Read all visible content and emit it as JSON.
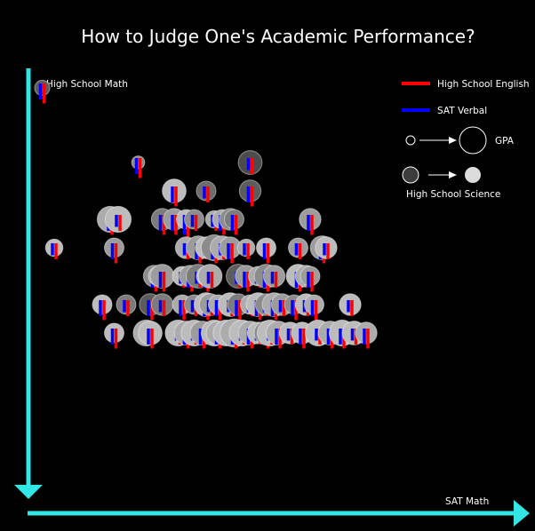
{
  "chart_data": {
    "type": "scatter",
    "title": "How to Judge One's Academic Performance?",
    "xlabel": "SAT Math",
    "ylabel": "High School Math",
    "xlim": [
      0,
      100
    ],
    "ylim": [
      0,
      100
    ],
    "legend": {
      "placement": "top-right",
      "english_label": "High School English",
      "verbal_label": "SAT Verbal",
      "gpa_label": "GPA",
      "science_label": "High School Science"
    },
    "colors": {
      "background": "#000000",
      "axis": "#33e6e6",
      "english": "#ff0000",
      "verbal": "#0000ff",
      "science_low": "#3c3c3c",
      "science_high": "#dcdcdc",
      "outline": "#ffffff"
    },
    "fields": [
      "sat_math",
      "hs_math",
      "gpa",
      "hs_science",
      "hs_english",
      "sat_verbal"
    ],
    "points": [
      [
        -1,
        100,
        30,
        20,
        50,
        40
      ],
      [
        23,
        79,
        20,
        50,
        50,
        40
      ],
      [
        51,
        79,
        70,
        10,
        40,
        30
      ],
      [
        32,
        71,
        70,
        80,
        50,
        40
      ],
      [
        40,
        71,
        50,
        30,
        40,
        30
      ],
      [
        51,
        71,
        60,
        20,
        50,
        40
      ],
      [
        16,
        63,
        80,
        70,
        50,
        40
      ],
      [
        18,
        63,
        80,
        80,
        40,
        30
      ],
      [
        29,
        63,
        60,
        40,
        50,
        40
      ],
      [
        32,
        63,
        60,
        60,
        50,
        40
      ],
      [
        35,
        63,
        50,
        80,
        60,
        50
      ],
      [
        37,
        63,
        50,
        50,
        40,
        30
      ],
      [
        42,
        63,
        40,
        70,
        40,
        30
      ],
      [
        44,
        63,
        50,
        70,
        50,
        40
      ],
      [
        46,
        63,
        60,
        50,
        40,
        30
      ],
      [
        47,
        63,
        50,
        40,
        50,
        40
      ],
      [
        66,
        63,
        60,
        60,
        50,
        40
      ],
      [
        2,
        55,
        40,
        80,
        40,
        30
      ],
      [
        17,
        55,
        50,
        60,
        50,
        40
      ],
      [
        35,
        55,
        60,
        70,
        40,
        30
      ],
      [
        38,
        55,
        70,
        60,
        50,
        40
      ],
      [
        40,
        55,
        60,
        80,
        40,
        30
      ],
      [
        42,
        55,
        80,
        50,
        50,
        40
      ],
      [
        44,
        55,
        70,
        70,
        40,
        30
      ],
      [
        46,
        55,
        60,
        60,
        50,
        40
      ],
      [
        50,
        55,
        40,
        70,
        40,
        30
      ],
      [
        55,
        55,
        50,
        80,
        50,
        40
      ],
      [
        63,
        55,
        50,
        60,
        40,
        30
      ],
      [
        69,
        55,
        70,
        60,
        50,
        40
      ],
      [
        70,
        55,
        60,
        80,
        40,
        30
      ],
      [
        27,
        47,
        60,
        50,
        50,
        40
      ],
      [
        28,
        47,
        50,
        70,
        40,
        30
      ],
      [
        29,
        47,
        70,
        60,
        50,
        40
      ],
      [
        34,
        47,
        50,
        80,
        40,
        30
      ],
      [
        36,
        47,
        60,
        60,
        50,
        40
      ],
      [
        38,
        47,
        70,
        40,
        40,
        30
      ],
      [
        40,
        47,
        50,
        80,
        50,
        40
      ],
      [
        41,
        47,
        70,
        70,
        40,
        30
      ],
      [
        48,
        47,
        70,
        20,
        40,
        30
      ],
      [
        50,
        47,
        60,
        60,
        50,
        40
      ],
      [
        53,
        47,
        50,
        70,
        40,
        30
      ],
      [
        55,
        47,
        70,
        50,
        50,
        40
      ],
      [
        57,
        47,
        60,
        60,
        40,
        30
      ],
      [
        63,
        47,
        70,
        80,
        50,
        40
      ],
      [
        65,
        47,
        60,
        70,
        40,
        30
      ],
      [
        66,
        47,
        50,
        60,
        50,
        40
      ],
      [
        14,
        39,
        50,
        80,
        50,
        40
      ],
      [
        20,
        39,
        50,
        40,
        40,
        30
      ],
      [
        26,
        39,
        60,
        20,
        50,
        40
      ],
      [
        29,
        39,
        60,
        40,
        40,
        30
      ],
      [
        34,
        39,
        50,
        70,
        50,
        40
      ],
      [
        37,
        39,
        50,
        50,
        40,
        30
      ],
      [
        40,
        39,
        70,
        80,
        50,
        40
      ],
      [
        41,
        39,
        60,
        60,
        40,
        30
      ],
      [
        43,
        39,
        50,
        70,
        50,
        40
      ],
      [
        46,
        39,
        70,
        80,
        40,
        30
      ],
      [
        48,
        39,
        60,
        40,
        50,
        40
      ],
      [
        51,
        39,
        50,
        70,
        40,
        30
      ],
      [
        53,
        39,
        70,
        80,
        50,
        40
      ],
      [
        55,
        39,
        60,
        50,
        40,
        30
      ],
      [
        57,
        39,
        70,
        70,
        50,
        40
      ],
      [
        59,
        39,
        60,
        60,
        40,
        30
      ],
      [
        62,
        39,
        50,
        50,
        50,
        40
      ],
      [
        65,
        39,
        60,
        80,
        40,
        30
      ],
      [
        67,
        39,
        50,
        70,
        50,
        40
      ],
      [
        76,
        39,
        60,
        80,
        40,
        30
      ],
      [
        17,
        31,
        50,
        80,
        50,
        40
      ],
      [
        25,
        31,
        80,
        70,
        40,
        30
      ],
      [
        26,
        31,
        70,
        80,
        50,
        40
      ],
      [
        33,
        31,
        80,
        80,
        40,
        30
      ],
      [
        35,
        31,
        70,
        70,
        50,
        40
      ],
      [
        37,
        31,
        80,
        80,
        40,
        30
      ],
      [
        39,
        31,
        70,
        60,
        50,
        40
      ],
      [
        42,
        31,
        80,
        80,
        40,
        30
      ],
      [
        43,
        31,
        70,
        70,
        50,
        40
      ],
      [
        45,
        31,
        80,
        80,
        40,
        30
      ],
      [
        47,
        31,
        90,
        70,
        50,
        40
      ],
      [
        49,
        31,
        80,
        80,
        40,
        30
      ],
      [
        51,
        31,
        70,
        70,
        50,
        40
      ],
      [
        53,
        31,
        60,
        80,
        40,
        30
      ],
      [
        55,
        31,
        70,
        50,
        50,
        40
      ],
      [
        56,
        31,
        80,
        80,
        40,
        30
      ],
      [
        58,
        31,
        70,
        70,
        50,
        40
      ],
      [
        61,
        31,
        60,
        80,
        40,
        30
      ],
      [
        64,
        31,
        60,
        80,
        50,
        40
      ],
      [
        68,
        31,
        80,
        80,
        40,
        30
      ],
      [
        71,
        31,
        70,
        70,
        50,
        40
      ],
      [
        74,
        31,
        80,
        80,
        50,
        40
      ],
      [
        77,
        31,
        70,
        80,
        40,
        30
      ],
      [
        80,
        31,
        60,
        70,
        50,
        40
      ]
    ]
  }
}
